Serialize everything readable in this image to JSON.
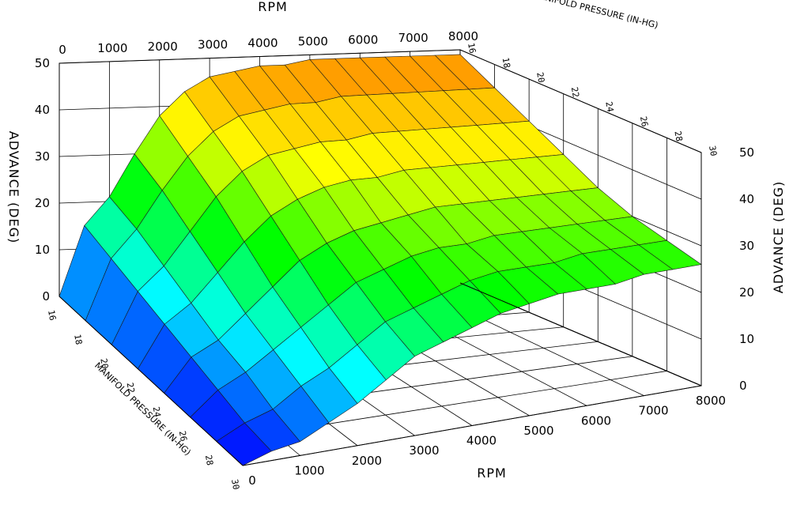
{
  "chart_data": {
    "type": "surface3d",
    "x_label": "RPM",
    "y_label": "MANIFOLD PRESSURE (IN-HG)",
    "z_label": "ADVANCE (DEG)",
    "x_ticks": [
      "0",
      "1000",
      "2000",
      "3000",
      "4000",
      "5000",
      "6000",
      "7000",
      "8000"
    ],
    "y_ticks": [
      "16",
      "18",
      "20",
      "22",
      "24",
      "26",
      "28",
      "30"
    ],
    "z_ticks": [
      "0",
      "10",
      "20",
      "30",
      "40",
      "50"
    ],
    "x_range": [
      0,
      8000
    ],
    "y_range": [
      16,
      30
    ],
    "z_range": [
      0,
      50
    ],
    "rpm": [
      0,
      500,
      1000,
      1500,
      2000,
      2500,
      3000,
      3500,
      4000,
      4500,
      5000,
      5500,
      6000,
      6500,
      7000,
      7500,
      8000
    ],
    "map": [
      16,
      18,
      20,
      22,
      24,
      26,
      28,
      30
    ],
    "advance": [
      [
        0,
        15,
        21,
        30,
        38,
        43,
        46,
        47,
        48,
        48,
        49,
        49,
        49,
        49,
        49,
        49,
        49
      ],
      [
        0,
        13,
        19,
        27,
        34,
        39,
        42,
        43,
        44,
        44,
        45,
        45,
        45,
        45,
        45,
        45,
        45
      ],
      [
        0,
        11,
        16,
        23,
        30,
        35,
        38,
        39,
        40,
        40,
        41,
        41,
        41,
        41,
        41,
        41,
        41
      ],
      [
        0,
        9,
        13,
        19,
        25,
        30,
        33,
        35,
        36,
        36,
        37,
        37,
        37,
        37,
        37,
        37,
        37
      ],
      [
        0,
        7,
        10,
        15,
        20,
        25,
        28,
        30,
        31,
        32,
        33,
        33,
        33,
        33,
        33,
        33,
        33
      ],
      [
        0,
        5,
        8,
        12,
        16,
        20,
        24,
        26,
        28,
        29,
        29,
        30,
        30,
        30,
        30,
        30,
        30
      ],
      [
        0,
        3,
        5,
        9,
        12,
        16,
        20,
        22,
        24,
        26,
        27,
        27,
        27,
        28,
        28,
        28,
        28
      ],
      [
        0,
        2,
        3,
        6,
        9,
        13,
        17,
        19,
        21,
        23,
        24,
        25,
        25,
        25,
        26,
        26,
        26
      ]
    ],
    "colormap": [
      "#0000ff",
      "#00ffff",
      "#00ff00",
      "#ffff00",
      "#ff8000"
    ],
    "grid": true,
    "legend": "none"
  }
}
